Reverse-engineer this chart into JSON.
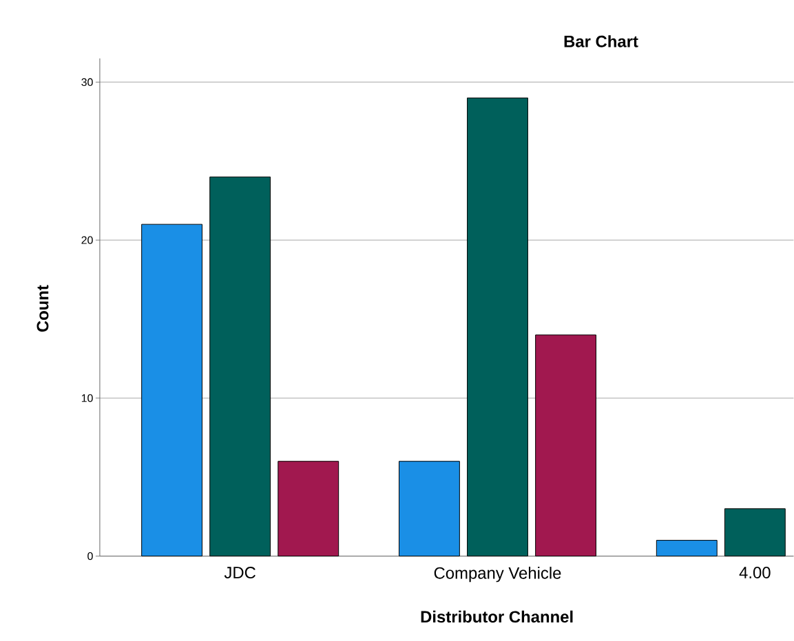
{
  "chart_data": {
    "type": "bar",
    "title": "Bar Chart",
    "xlabel": "Distributor Channel",
    "ylabel": "Count",
    "categories": [
      "JDC",
      "Company Vehicle",
      "4.00"
    ],
    "series": [
      {
        "color": "#1a8fe6",
        "values": [
          21,
          6,
          1
        ]
      },
      {
        "color": "#00605b",
        "values": [
          24,
          29,
          3
        ]
      },
      {
        "color": "#a1184f",
        "values": [
          6,
          14,
          null
        ]
      }
    ],
    "ylim": [
      0,
      31.5
    ],
    "yticks": [
      0,
      10,
      20,
      30
    ],
    "grid": "y"
  }
}
